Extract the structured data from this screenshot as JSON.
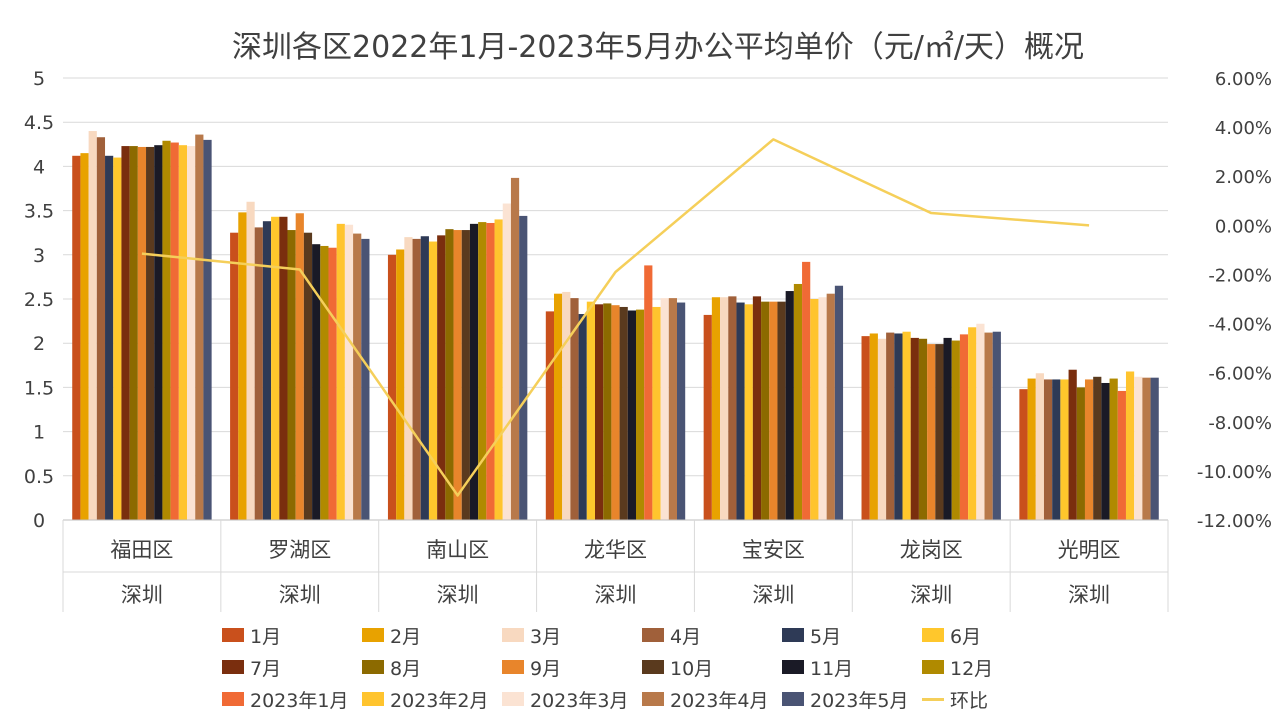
{
  "chart_data": {
    "type": "bar",
    "title": "深圳各区2022年1月-2023年5月办公平均单价（元/㎡/天）概况",
    "categories": [
      "福田区",
      "罗湖区",
      "南山区",
      "龙华区",
      "宝安区",
      "龙岗区",
      "光明区"
    ],
    "group_label": "深圳",
    "y_left": {
      "min": 0,
      "max": 5,
      "ticks": [
        "0",
        "0.5",
        "1",
        "1.5",
        "2",
        "2.5",
        "3",
        "3.5",
        "4",
        "4.5",
        "5"
      ]
    },
    "y_right": {
      "min": -12,
      "max": 6,
      "ticks": [
        "-12.00%",
        "-10.00%",
        "-8.00%",
        "-6.00%",
        "-4.00%",
        "-2.00%",
        "0.00%",
        "2.00%",
        "4.00%",
        "6.00%"
      ]
    },
    "grid": true,
    "legend_position": "bottom",
    "series": [
      {
        "name": "1月",
        "color": "#C9501C",
        "values": [
          4.12,
          3.25,
          3.0,
          2.36,
          2.32,
          2.08,
          1.48
        ]
      },
      {
        "name": "2月",
        "color": "#E8A200",
        "values": [
          4.15,
          3.48,
          3.06,
          2.56,
          2.52,
          2.11,
          1.6
        ]
      },
      {
        "name": "3月",
        "color": "#F8D9C0",
        "values": [
          4.4,
          3.6,
          3.2,
          2.58,
          2.52,
          2.05,
          1.66
        ]
      },
      {
        "name": "4月",
        "color": "#A0603A",
        "values": [
          4.33,
          3.31,
          3.18,
          2.51,
          2.53,
          2.12,
          1.59
        ]
      },
      {
        "name": "5月",
        "color": "#2E3A56",
        "values": [
          4.12,
          3.38,
          3.21,
          2.33,
          2.46,
          2.11,
          1.59
        ]
      },
      {
        "name": "6月",
        "color": "#FFC72C",
        "values": [
          4.1,
          3.43,
          3.15,
          2.47,
          2.44,
          2.13,
          1.59
        ]
      },
      {
        "name": "7月",
        "color": "#7A2E0E",
        "values": [
          4.23,
          3.43,
          3.22,
          2.44,
          2.53,
          2.06,
          1.7
        ]
      },
      {
        "name": "8月",
        "color": "#8C6A00",
        "values": [
          4.23,
          3.28,
          3.29,
          2.45,
          2.47,
          2.05,
          1.5
        ]
      },
      {
        "name": "9月",
        "color": "#E8852B",
        "values": [
          4.22,
          3.47,
          3.28,
          2.43,
          2.47,
          1.99,
          1.59
        ]
      },
      {
        "name": "10月",
        "color": "#5A3A1E",
        "values": [
          4.22,
          3.25,
          3.28,
          2.41,
          2.47,
          1.99,
          1.62
        ]
      },
      {
        "name": "11月",
        "color": "#1A1A26",
        "values": [
          4.24,
          3.12,
          3.35,
          2.37,
          2.59,
          2.06,
          1.55
        ]
      },
      {
        "name": "12月",
        "color": "#B08A00",
        "values": [
          4.29,
          3.1,
          3.37,
          2.38,
          2.67,
          2.03,
          1.6
        ]
      },
      {
        "name": "2023年1月",
        "color": "#F06A35",
        "values": [
          4.27,
          3.08,
          3.36,
          2.88,
          2.92,
          2.1,
          1.46
        ]
      },
      {
        "name": "2023年2月",
        "color": "#FFC42E",
        "values": [
          4.24,
          3.35,
          3.4,
          2.41,
          2.5,
          2.18,
          1.68
        ]
      },
      {
        "name": "2023年3月",
        "color": "#FBE3D3",
        "values": [
          4.23,
          3.34,
          3.58,
          2.51,
          2.52,
          2.22,
          1.62
        ]
      },
      {
        "name": "2023年4月",
        "color": "#B8794A",
        "values": [
          4.36,
          3.24,
          3.87,
          2.51,
          2.56,
          2.12,
          1.61
        ]
      },
      {
        "name": "2023年5月",
        "color": "#4A5474",
        "values": [
          4.3,
          3.18,
          3.44,
          2.46,
          2.65,
          2.13,
          1.61
        ]
      }
    ],
    "line_series": {
      "name": "环比",
      "color": "#F5CF5A",
      "axis": "right",
      "values": [
        -1.15,
        -1.8,
        -11.0,
        -1.9,
        3.5,
        0.5,
        0.0
      ]
    }
  }
}
